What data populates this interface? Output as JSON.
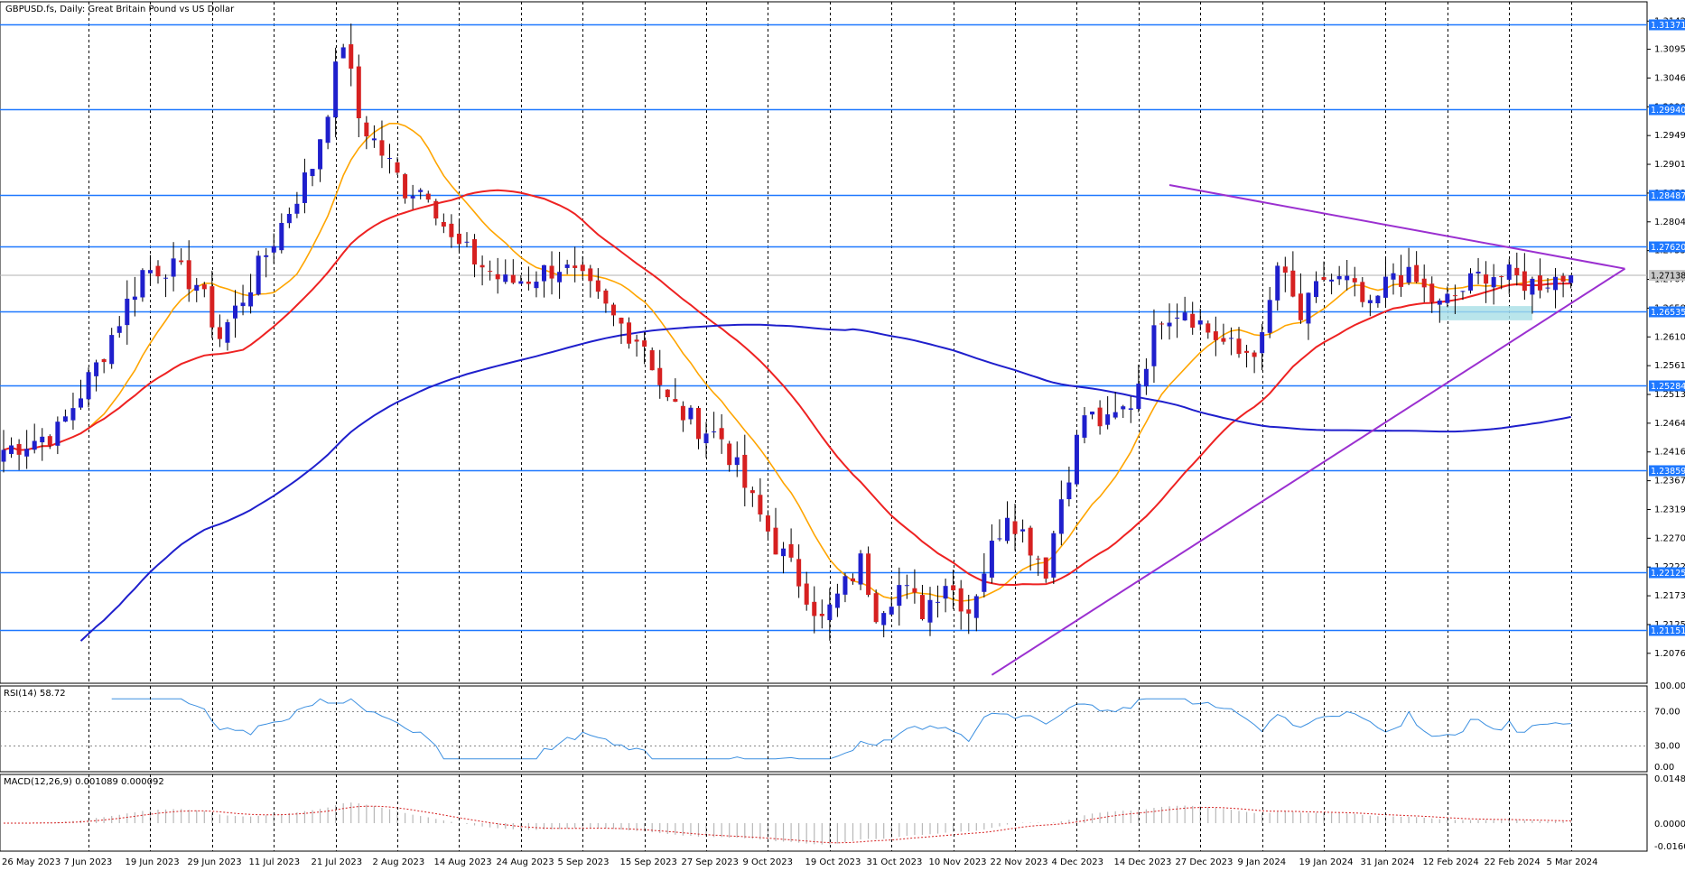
{
  "chart_data": {
    "type": "candlestick",
    "title": "GBPUSD.fs, Daily:  Great Britain Pound vs US Dollar",
    "last_price_label": "1.27138",
    "price_axis_ticks": [
      "1.31425",
      "1.30950",
      "1.30465",
      "1.29980",
      "1.29495",
      "1.29010",
      "1.28525",
      "1.28040",
      "1.27555",
      "1.27070",
      "1.26585",
      "1.26100",
      "1.25615",
      "1.25130",
      "1.24645",
      "1.24160",
      "1.23675",
      "1.23190",
      "1.22705",
      "1.22220",
      "1.21735",
      "1.21250",
      "1.20765"
    ],
    "ylim": [
      1.2026,
      1.3175
    ],
    "horizontal_levels": [
      {
        "value": 1.31371,
        "label": "1.31371"
      },
      {
        "value": 1.2994,
        "label": "1.29940"
      },
      {
        "value": 1.28487,
        "label": "1.28487"
      },
      {
        "value": 1.2762,
        "label": "1.27620"
      },
      {
        "value": 1.26535,
        "label": "1.26535"
      },
      {
        "value": 1.25284,
        "label": "1.25284"
      },
      {
        "value": 1.23859,
        "label": "1.23859"
      },
      {
        "value": 1.22125,
        "label": "1.22125"
      },
      {
        "value": 1.21151,
        "label": "1.21151"
      }
    ],
    "date_labels": [
      "26 May 2023",
      "7 Jun 2023",
      "19 Jun 2023",
      "29 Jun 2023",
      "11 Jul 2023",
      "21 Jul 2023",
      "2 Aug 2023",
      "14 Aug 2023",
      "24 Aug 2023",
      "5 Sep 2023",
      "15 Sep 2023",
      "27 Sep 2023",
      "9 Oct 2023",
      "19 Oct 2023",
      "31 Oct 2023",
      "10 Nov 2023",
      "22 Nov 2023",
      "4 Dec 2023",
      "14 Dec 2023",
      "27 Dec 2023",
      "9 Jan 2024",
      "19 Jan 2024",
      "31 Jan 2024",
      "12 Feb 2024",
      "22 Feb 2024",
      "5 Mar 2024"
    ],
    "bar_count": 204,
    "close_knots": [
      [
        0,
        1.242
      ],
      [
        7,
        1.245
      ],
      [
        12,
        1.256
      ],
      [
        15,
        1.264
      ],
      [
        18,
        1.272
      ],
      [
        21,
        1.273
      ],
      [
        25,
        1.27
      ],
      [
        28,
        1.261
      ],
      [
        32,
        1.27
      ],
      [
        36,
        1.28
      ],
      [
        40,
        1.29
      ],
      [
        42,
        1.3
      ],
      [
        44,
        1.311
      ],
      [
        46,
        1.298
      ],
      [
        49,
        1.292
      ],
      [
        52,
        1.286
      ],
      [
        55,
        1.286
      ],
      [
        58,
        1.277
      ],
      [
        61,
        1.274
      ],
      [
        65,
        1.27
      ],
      [
        68,
        1.271
      ],
      [
        72,
        1.273
      ],
      [
        75,
        1.27
      ],
      [
        79,
        1.264
      ],
      [
        83,
        1.26
      ],
      [
        86,
        1.25
      ],
      [
        90,
        1.246
      ],
      [
        93,
        1.244
      ],
      [
        97,
        1.233
      ],
      [
        100,
        1.226
      ],
      [
        104,
        1.218
      ],
      [
        106,
        1.213
      ],
      [
        108,
        1.217
      ],
      [
        111,
        1.223
      ],
      [
        113,
        1.215
      ],
      [
        116,
        1.219
      ],
      [
        119,
        1.215
      ],
      [
        122,
        1.22
      ],
      [
        125,
        1.215
      ],
      [
        127,
        1.222
      ],
      [
        130,
        1.232
      ],
      [
        133,
        1.226
      ],
      [
        135,
        1.222
      ],
      [
        137,
        1.234
      ],
      [
        140,
        1.248
      ],
      [
        143,
        1.246
      ],
      [
        146,
        1.25
      ],
      [
        150,
        1.265
      ],
      [
        153,
        1.266
      ],
      [
        156,
        1.262
      ],
      [
        160,
        1.258
      ],
      [
        163,
        1.26
      ],
      [
        165,
        1.273
      ],
      [
        168,
        1.264
      ],
      [
        171,
        1.271
      ],
      [
        174,
        1.27
      ],
      [
        177,
        1.265
      ],
      [
        180,
        1.272
      ],
      [
        183,
        1.27
      ],
      [
        186,
        1.266
      ],
      [
        189,
        1.269
      ],
      [
        192,
        1.272
      ],
      [
        195,
        1.271
      ],
      [
        198,
        1.27
      ],
      [
        201,
        1.271
      ],
      [
        203,
        1.2713
      ]
    ],
    "last_close": 1.27138,
    "overlays": [
      {
        "name": "MA fast",
        "color": "#ffa500"
      },
      {
        "name": "MA mid",
        "color": "#ee2222"
      },
      {
        "name": "MA slow",
        "color": "#1f1fcc"
      }
    ],
    "trendlines": [
      {
        "from": [
          128,
          1.204
        ],
        "to": [
          210,
          1.2725
        ],
        "color": "#9b30d0"
      },
      {
        "from": [
          151,
          1.2866
        ],
        "to": [
          210,
          1.2725
        ],
        "color": "#9b30d0"
      }
    ],
    "zone": {
      "from_bar": 186,
      "to_bar": 198,
      "top": 1.2662,
      "bottom": 1.2638,
      "color": "#a8dfe6"
    },
    "rsi": {
      "label": "RSI(14) 58.72",
      "ticks": [
        "100.00",
        "70.00",
        "30.00",
        "0.00"
      ],
      "levels": [
        70,
        30
      ]
    },
    "macd": {
      "label": "MACD(12,26,9) 0.001089 0.000092",
      "ticks": [
        "0.014896",
        "0.000000",
        "-0.016009"
      ]
    }
  },
  "colors": {
    "bull": "#1f1fcc",
    "bear": "#d62020",
    "level_line": "#1e78ff",
    "label_fill": "#1e78ff"
  }
}
